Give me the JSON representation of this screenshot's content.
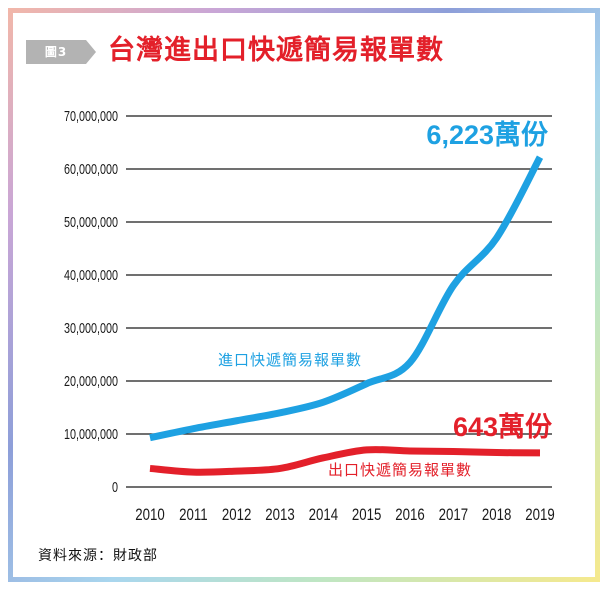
{
  "figure": {
    "tag": "圖3"
  },
  "title": "台灣進出口快遞簡易報單數",
  "source": "資料來源：財政部",
  "chart_data": {
    "type": "line",
    "categories": [
      "2010",
      "2011",
      "2012",
      "2013",
      "2014",
      "2015",
      "2016",
      "2017",
      "2018",
      "2019"
    ],
    "y_ticks": [
      "0",
      "10,000,000",
      "20,000,000",
      "30,000,000",
      "40,000,000",
      "50,000,000",
      "60,000,000",
      "70,000,000"
    ],
    "ylim": [
      0,
      70000000
    ],
    "grid": true,
    "series": [
      {
        "name": "進口快遞簡易報單數",
        "color": "#1ea1e2",
        "values": [
          9300000,
          11000000,
          12500000,
          14000000,
          16000000,
          19500000,
          23500000,
          38000000,
          47000000,
          62230000
        ],
        "end_label": "6,223萬份"
      },
      {
        "name": "出口快遞簡易報單數",
        "color": "#e3202a",
        "values": [
          3500000,
          2800000,
          3000000,
          3500000,
          5500000,
          7000000,
          6800000,
          6700000,
          6500000,
          6430000
        ],
        "end_label": "643萬份"
      }
    ]
  }
}
